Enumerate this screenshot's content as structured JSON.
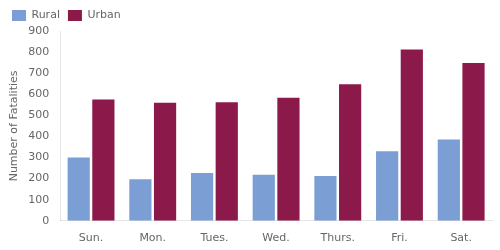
{
  "chart_data": {
    "type": "bar",
    "categories": [
      "Sun.",
      "Mon.",
      "Tues.",
      "Wed.",
      "Thurs.",
      "Fri.",
      "Sat."
    ],
    "series": [
      {
        "name": "Rural",
        "color": "#7B9FD4",
        "values": [
          300,
          197,
          227,
          218,
          213,
          330,
          385
        ]
      },
      {
        "name": "Urban",
        "color": "#8B1A4A",
        "values": [
          575,
          560,
          562,
          583,
          648,
          812,
          748
        ]
      }
    ],
    "ylabel": "Number of Fatalities",
    "ylim": [
      0,
      900
    ],
    "yticks": [
      0,
      100,
      200,
      300,
      400,
      500,
      600,
      700,
      800,
      900
    ],
    "grid": false,
    "legend": "upper left"
  }
}
